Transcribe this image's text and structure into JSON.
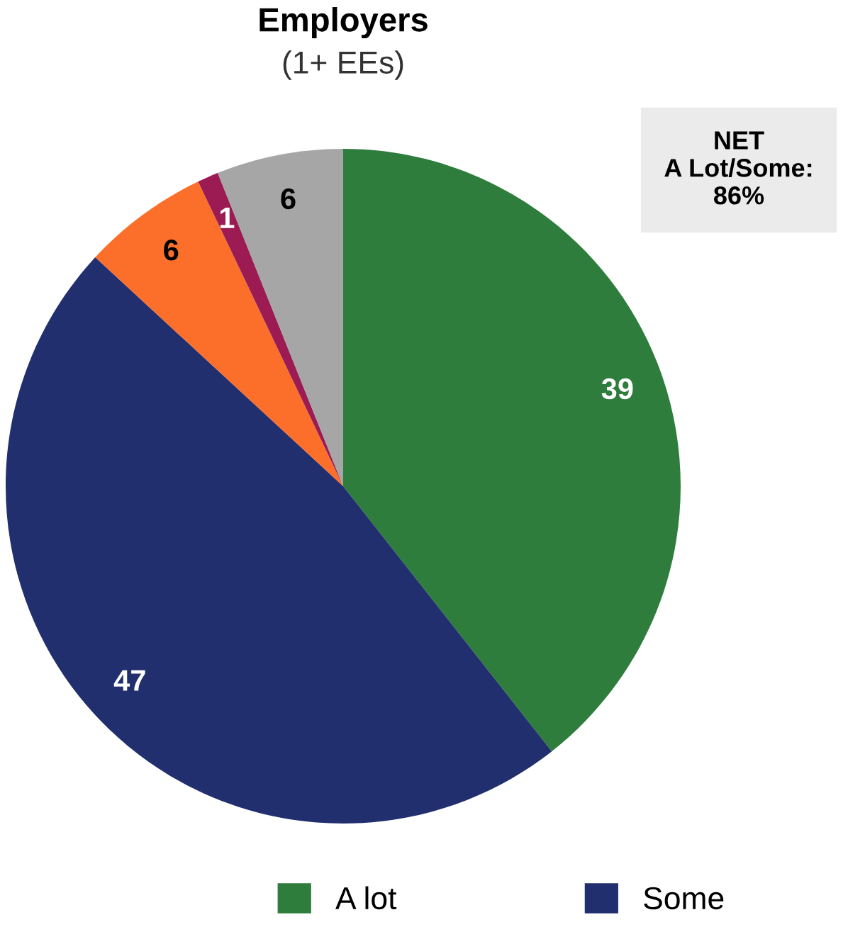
{
  "chart_data": {
    "type": "pie",
    "title": "Employers",
    "subtitle": "(1+ EEs)",
    "categories": [
      "A lot",
      "Some",
      null,
      null,
      null
    ],
    "values": [
      39,
      47,
      6,
      1,
      6
    ],
    "colors": [
      "#2e7d3c",
      "#222f6e",
      "#fc6f2b",
      "#9b1b52",
      "#a6a6a6"
    ],
    "data_labels": true,
    "legend": "bottom",
    "annotations": [
      "NET\nA Lot/Some:\n86%"
    ]
  }
}
